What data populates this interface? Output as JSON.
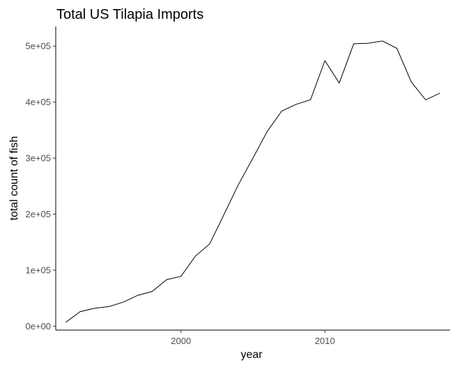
{
  "chart_data": {
    "type": "line",
    "title": "Total US Tilapia Imports",
    "xlabel": "year",
    "ylabel": "total count of fish",
    "xlim": [
      1991.3,
      2018.7
    ],
    "ylim": [
      -7000,
      535000
    ],
    "grid": false,
    "x_ticks": [
      2000,
      2010
    ],
    "x_tick_labels": [
      "2000",
      "2010"
    ],
    "y_ticks": [
      0,
      100000,
      200000,
      300000,
      400000,
      500000
    ],
    "y_tick_labels": [
      "0e+00",
      "1e+05",
      "2e+05",
      "3e+05",
      "4e+05",
      "5e+05"
    ],
    "series": [
      {
        "x": [
          1992,
          1993,
          1994,
          1995,
          1996,
          1997,
          1998,
          1999,
          2000,
          2001,
          2002,
          2003,
          2004,
          2005,
          2006,
          2007,
          2008,
          2009,
          2010,
          2011,
          2012,
          2013,
          2014,
          2015,
          2016,
          2017,
          2018
        ],
        "values": [
          7000,
          26000,
          32000,
          35000,
          43000,
          55000,
          62000,
          83000,
          89000,
          125000,
          147000,
          200000,
          253000,
          300000,
          348000,
          384000,
          396000,
          404000,
          474000,
          434000,
          504000,
          505000,
          509000,
          496000,
          436000,
          404000,
          416000
        ],
        "color": "#000000"
      }
    ]
  }
}
